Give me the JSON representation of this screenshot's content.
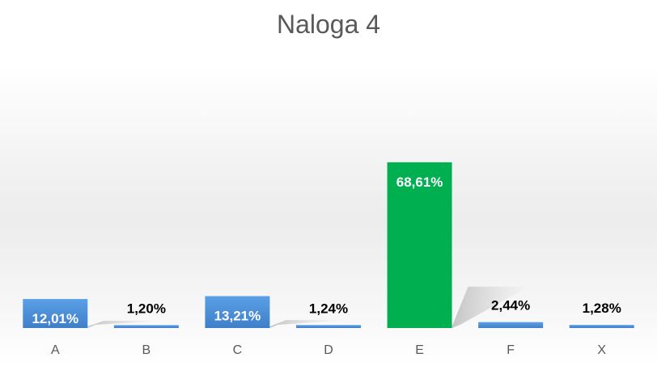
{
  "chart_data": {
    "type": "bar",
    "title": "Naloga 4",
    "categories": [
      "A",
      "B",
      "C",
      "D",
      "E",
      "F",
      "X"
    ],
    "values": [
      12.01,
      1.2,
      13.21,
      1.24,
      68.61,
      2.44,
      1.28
    ],
    "data_labels": [
      "12,01%",
      "1,20%",
      "13,21%",
      "1,24%",
      "68,61%",
      "2,44%",
      "1,28%"
    ],
    "ylim": [
      0,
      100
    ],
    "grid": false,
    "legend": "none",
    "colors": {
      "default_bar": "#4a8fd8",
      "highlight_bar": "#00b050",
      "label_inside": "#ffffff",
      "label_outside": "#000000",
      "axis_label": "#595959"
    },
    "highlight_index": 4
  }
}
